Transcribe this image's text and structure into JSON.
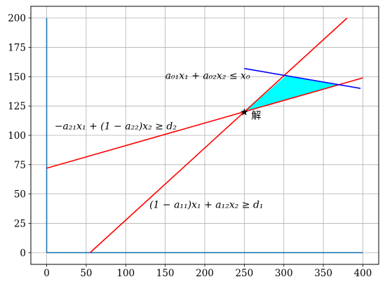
{
  "chart_data": {
    "type": "line",
    "title": "",
    "xlabel": "",
    "ylabel": "",
    "xlim": [
      -20,
      420
    ],
    "ylim": [
      -10,
      210
    ],
    "grid": true,
    "x_ticks": [
      0,
      50,
      100,
      150,
      200,
      250,
      300,
      350,
      400
    ],
    "y_ticks": [
      0,
      25,
      50,
      75,
      100,
      125,
      150,
      175,
      200
    ],
    "x_tick_labels": [
      "0",
      "50",
      "100",
      "150",
      "200",
      "250",
      "300",
      "350",
      "400"
    ],
    "y_tick_labels": [
      "0",
      "25",
      "50",
      "75",
      "100",
      "125",
      "150",
      "175",
      "200"
    ],
    "series": [
      {
        "color": "#1f77b4",
        "x": [
          0,
          0
        ],
        "y": [
          0,
          200
        ]
      },
      {
        "color": "#1f77b4",
        "x": [
          0,
          400
        ],
        "y": [
          0,
          0
        ]
      },
      {
        "color": "#ff0000",
        "x": [
          55,
          380
        ],
        "y": [
          0,
          200
        ]
      },
      {
        "color": "#ff0000",
        "x": [
          0,
          400
        ],
        "y": [
          72,
          149
        ]
      },
      {
        "color": "#0000ff",
        "x": [
          250,
          397
        ],
        "y": [
          157,
          140
        ]
      }
    ],
    "fill_region": {
      "color": "#00ffff",
      "x": [
        250,
        303,
        372
      ],
      "y": [
        120,
        151,
        143
      ]
    },
    "solution_point": {
      "x": 250,
      "y": 120,
      "marker": "★",
      "label": "解"
    },
    "annotations": [
      {
        "text": "a₀₁x₁ + a₀₂x₂ ≤ x₀",
        "x": 150,
        "y": 148
      },
      {
        "text": "−a₂₁x₁ + (1 − a₂₂)x₂ ≥ d₂",
        "x": 10,
        "y": 105
      },
      {
        "text": "(1 − a₁₁)x₁ + a₁₂x₂ ≥ d₁",
        "x": 130,
        "y": 38
      }
    ]
  }
}
